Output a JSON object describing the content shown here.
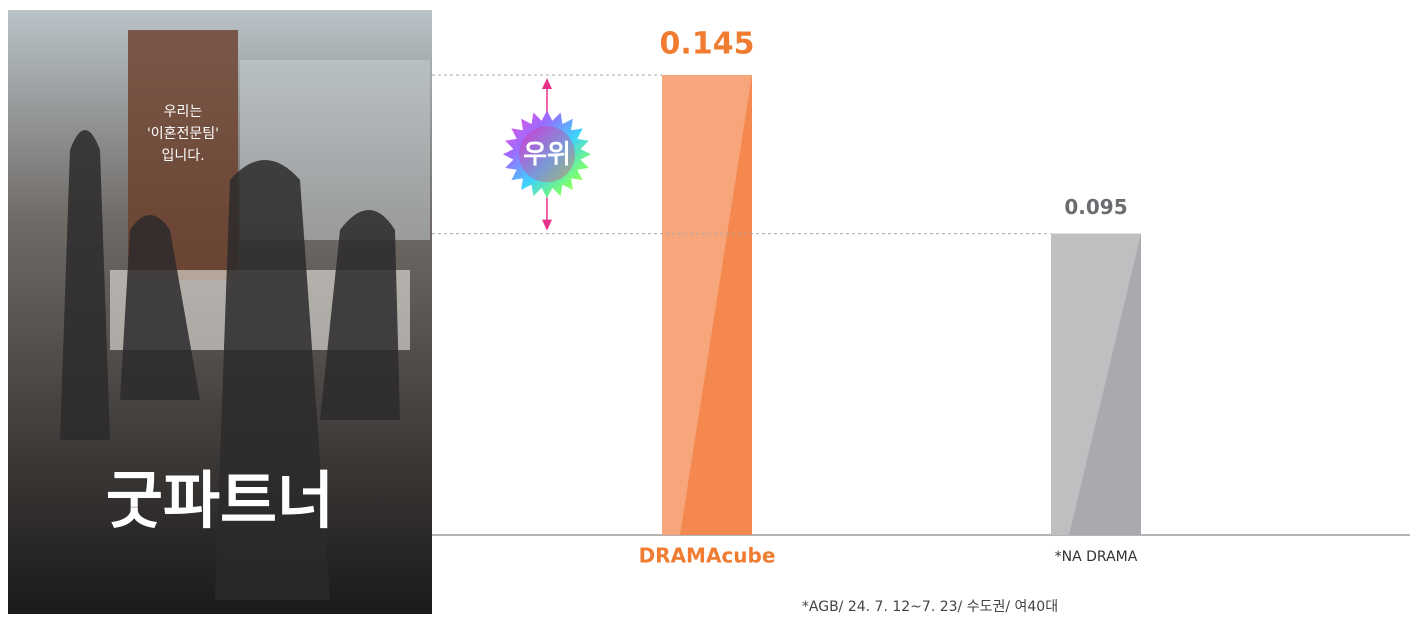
{
  "poster": {
    "title": "굿파트너",
    "tagline": [
      "우리는",
      "'이혼전문팀'",
      "입니다."
    ]
  },
  "chart_data": {
    "type": "bar",
    "categories": [
      "DRAMAcube",
      "*NA DRAMA"
    ],
    "values": [
      0.145,
      0.095
    ],
    "colors": [
      "#f5884f",
      "#a9aaad"
    ],
    "label_colors": [
      "#f07c32",
      "#6b6c70"
    ],
    "ylim": [
      0,
      0.16
    ],
    "annotation": "우위",
    "footnote": "*AGB/ 24. 7. 12~7. 23/ 수도권/ 여40대"
  }
}
